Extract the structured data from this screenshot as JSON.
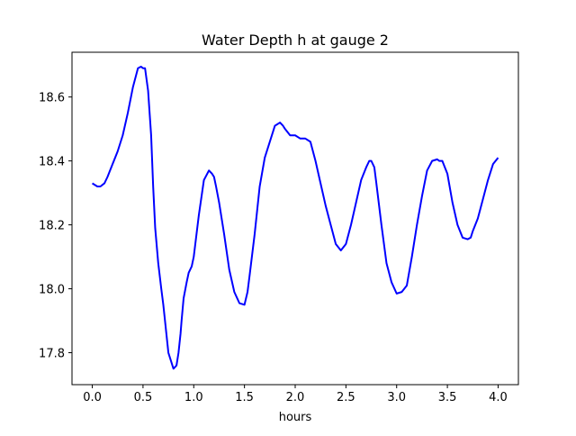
{
  "chart_data": {
    "type": "line",
    "title": "Water Depth h at gauge 2",
    "xlabel": "hours",
    "ylabel": "",
    "xlim": [
      -0.2,
      4.2
    ],
    "ylim": [
      17.7,
      18.74
    ],
    "x_ticks": [
      0.0,
      0.5,
      1.0,
      1.5,
      2.0,
      2.5,
      3.0,
      3.5,
      4.0
    ],
    "x_tick_labels": [
      "0.0",
      "0.5",
      "1.0",
      "1.5",
      "2.0",
      "2.5",
      "3.0",
      "3.5",
      "4.0"
    ],
    "y_ticks": [
      17.8,
      18.0,
      18.2,
      18.4,
      18.6
    ],
    "y_tick_labels": [
      "17.8",
      "18.0",
      "18.2",
      "18.4",
      "18.6"
    ],
    "grid": false,
    "legend": "none",
    "series": [
      {
        "color": "#0000ff",
        "x": [
          0.0,
          0.05,
          0.08,
          0.12,
          0.15,
          0.2,
          0.25,
          0.3,
          0.35,
          0.4,
          0.45,
          0.48,
          0.5,
          0.52,
          0.55,
          0.58,
          0.6,
          0.62,
          0.65,
          0.68,
          0.7,
          0.75,
          0.8,
          0.83,
          0.85,
          0.87,
          0.88,
          0.9,
          0.93,
          0.95,
          0.98,
          1.0,
          1.05,
          1.1,
          1.15,
          1.18,
          1.2,
          1.22,
          1.25,
          1.3,
          1.35,
          1.4,
          1.45,
          1.5,
          1.53,
          1.55,
          1.6,
          1.65,
          1.7,
          1.75,
          1.8,
          1.85,
          1.88,
          1.9,
          1.95,
          2.0,
          2.05,
          2.1,
          2.15,
          2.2,
          2.25,
          2.3,
          2.35,
          2.4,
          2.45,
          2.5,
          2.55,
          2.6,
          2.65,
          2.7,
          2.73,
          2.75,
          2.78,
          2.8,
          2.85,
          2.9,
          2.95,
          3.0,
          3.05,
          3.1,
          3.15,
          3.2,
          3.25,
          3.3,
          3.35,
          3.4,
          3.42,
          3.45,
          3.5,
          3.55,
          3.6,
          3.65,
          3.7,
          3.73,
          3.75,
          3.8,
          3.85,
          3.9,
          3.95,
          4.0
        ],
        "values": [
          18.33,
          18.32,
          18.32,
          18.33,
          18.35,
          18.39,
          18.43,
          18.48,
          18.55,
          18.63,
          18.69,
          18.695,
          18.69,
          18.69,
          18.62,
          18.48,
          18.32,
          18.19,
          18.08,
          18.0,
          17.95,
          17.8,
          17.75,
          17.76,
          17.8,
          17.86,
          17.9,
          17.97,
          18.02,
          18.05,
          18.07,
          18.1,
          18.23,
          18.34,
          18.37,
          18.36,
          18.35,
          18.32,
          18.27,
          18.17,
          18.06,
          17.99,
          17.955,
          17.95,
          17.99,
          18.04,
          18.17,
          18.32,
          18.41,
          18.46,
          18.51,
          18.52,
          18.51,
          18.5,
          18.48,
          18.48,
          18.47,
          18.47,
          18.46,
          18.4,
          18.33,
          18.26,
          18.2,
          18.14,
          18.12,
          18.14,
          18.2,
          18.27,
          18.34,
          18.38,
          18.4,
          18.4,
          18.38,
          18.33,
          18.2,
          18.08,
          18.02,
          17.985,
          17.99,
          18.01,
          18.1,
          18.2,
          18.29,
          18.37,
          18.4,
          18.405,
          18.4,
          18.4,
          18.36,
          18.27,
          18.2,
          18.16,
          18.155,
          18.16,
          18.18,
          18.22,
          18.28,
          18.34,
          18.39,
          18.41
        ]
      }
    ]
  }
}
